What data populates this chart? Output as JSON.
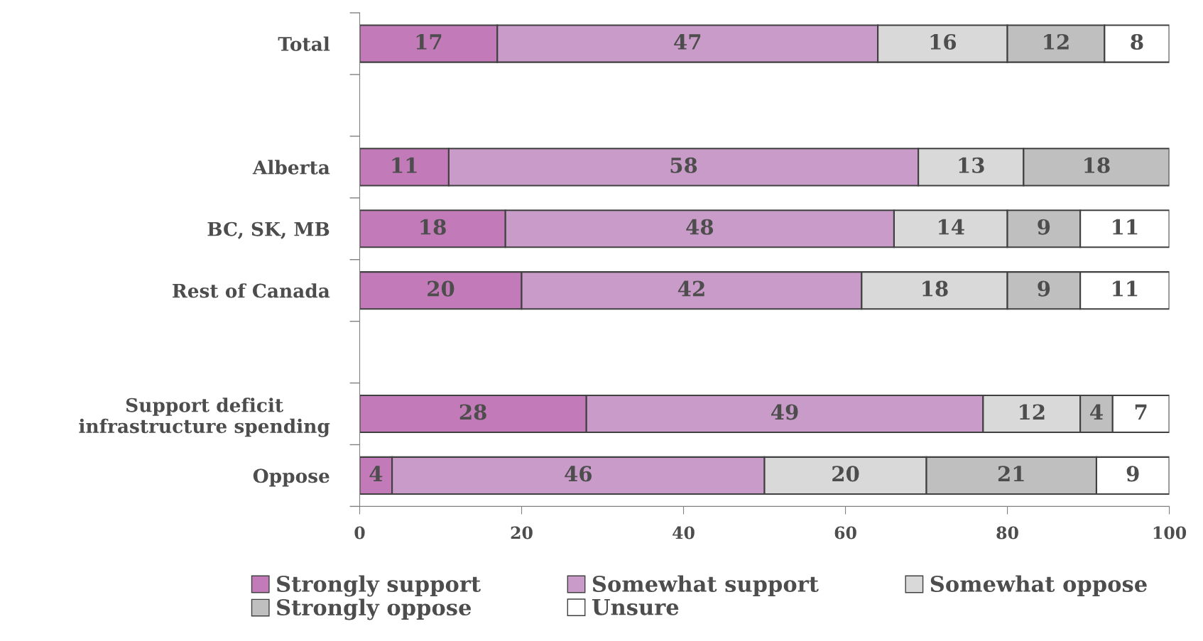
{
  "chart_data": {
    "type": "bar",
    "orientation": "horizontal",
    "stacked": true,
    "data_labels": true,
    "categories": [
      "Total",
      null,
      "Alberta",
      "BC, SK, MB",
      "Rest of Canada",
      null,
      "Support deficit\ninfrastructure spending",
      "Oppose"
    ],
    "series": [
      {
        "name": "Strongly support",
        "color": "#c27bb8",
        "values": [
          17,
          null,
          11,
          18,
          20,
          null,
          28,
          4
        ]
      },
      {
        "name": "Somewhat support",
        "color": "#c99bc8",
        "values": [
          47,
          null,
          58,
          48,
          42,
          null,
          49,
          46
        ]
      },
      {
        "name": "Somewhat oppose",
        "color": "#d9d9d9",
        "values": [
          16,
          null,
          13,
          14,
          18,
          null,
          12,
          20
        ]
      },
      {
        "name": "Strongly oppose",
        "color": "#bfbfbf",
        "values": [
          12,
          null,
          18,
          9,
          9,
          null,
          4,
          21
        ]
      },
      {
        "name": "Unsure",
        "color": "#ffffff",
        "values": [
          8,
          null,
          null,
          11,
          11,
          null,
          7,
          9
        ]
      }
    ],
    "xlim": [
      0,
      100
    ],
    "xticks": [
      0,
      20,
      40,
      60,
      80,
      100
    ],
    "grid": false,
    "legend": "bottom"
  }
}
